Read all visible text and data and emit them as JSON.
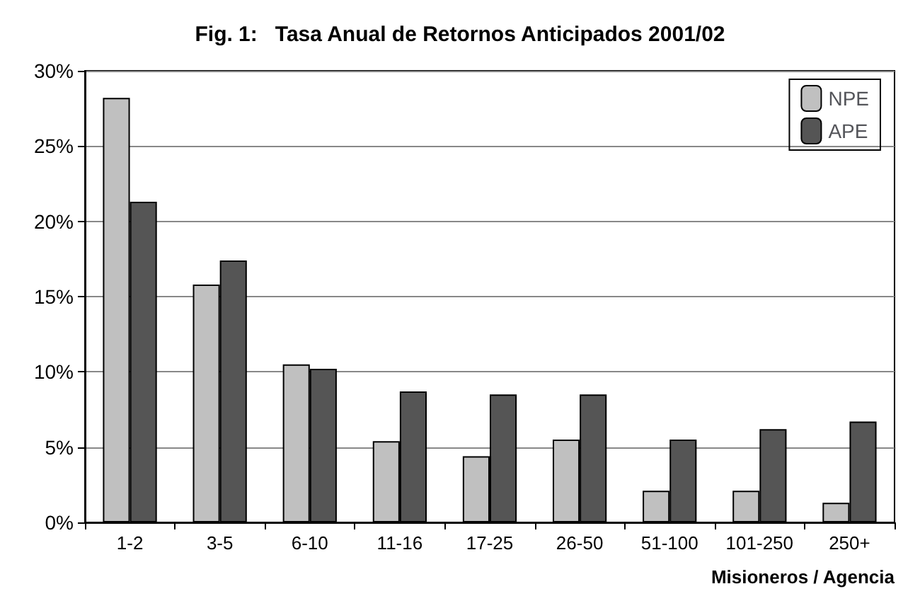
{
  "chart_data": {
    "type": "bar",
    "title": "Fig. 1:   Tasa Anual de Retornos Anticipados 2001/02",
    "xlabel": "Misioneros / Agencia",
    "categories": [
      "1-2",
      "3-5",
      "6-10",
      "11-16",
      "17-25",
      "26-50",
      "51-100",
      "101-250",
      "250+"
    ],
    "series": [
      {
        "name": "NPE",
        "color": "#c0c0c0",
        "values": [
          28.2,
          15.8,
          10.5,
          5.4,
          4.4,
          5.5,
          2.1,
          2.1,
          1.3
        ]
      },
      {
        "name": "APE",
        "color": "#555555",
        "values": [
          21.3,
          17.4,
          10.2,
          8.7,
          8.5,
          8.5,
          5.5,
          6.2,
          6.7
        ]
      }
    ],
    "ylim": [
      0,
      30
    ],
    "yticks": [
      {
        "value": 0,
        "label": "0%"
      },
      {
        "value": 5,
        "label": "5%"
      },
      {
        "value": 10,
        "label": "10%"
      },
      {
        "value": 15,
        "label": "15%"
      },
      {
        "value": 20,
        "label": "20%"
      },
      {
        "value": 25,
        "label": "25%"
      },
      {
        "value": 30,
        "label": "30%"
      }
    ],
    "grid": "y",
    "legend": "top right"
  }
}
